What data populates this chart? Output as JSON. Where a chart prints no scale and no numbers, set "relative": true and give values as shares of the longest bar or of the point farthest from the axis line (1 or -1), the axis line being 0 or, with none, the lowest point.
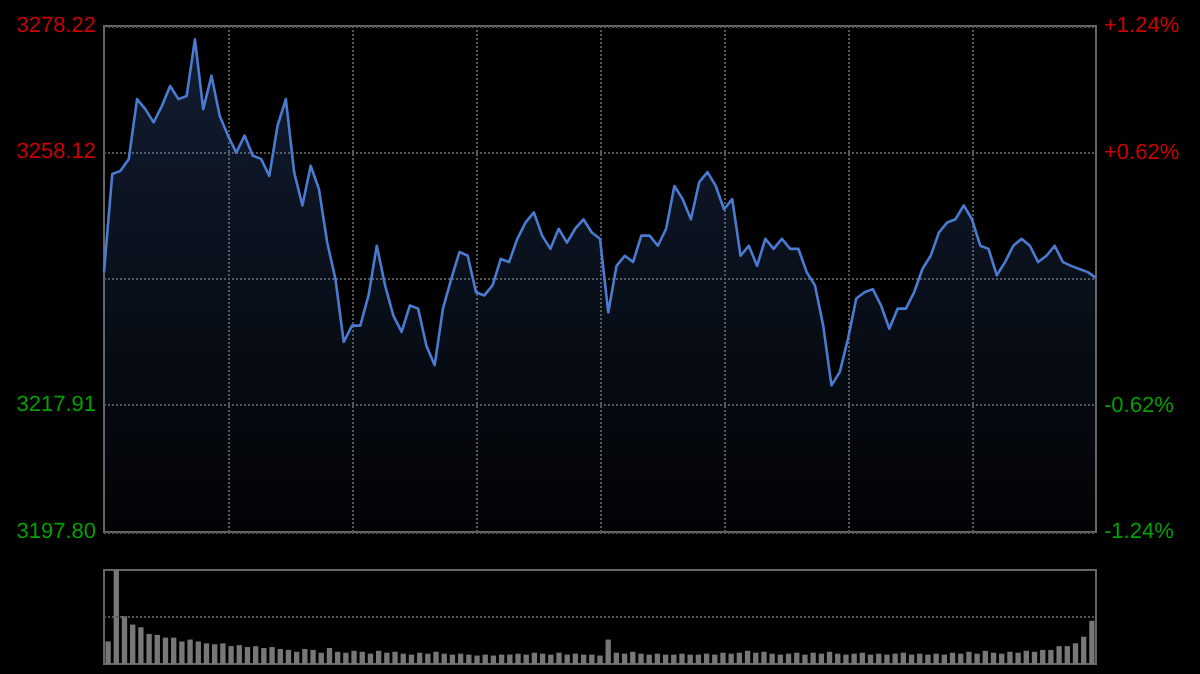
{
  "chart_data": [
    {
      "type": "area",
      "categories": [
        null,
        null,
        null,
        null,
        null,
        null,
        null,
        null,
        null,
        null,
        null,
        null,
        null,
        null,
        null,
        null,
        null,
        null,
        null,
        null,
        null,
        null,
        null,
        null,
        null,
        null,
        null,
        null,
        null,
        null,
        null,
        null,
        null,
        null,
        null,
        null,
        null,
        null,
        null,
        null,
        null,
        null,
        null,
        null,
        null,
        null,
        null,
        null,
        null,
        null,
        null,
        null,
        null,
        null,
        null,
        null,
        null,
        null,
        null,
        null,
        null,
        null,
        null,
        null,
        null,
        null,
        null,
        null,
        null,
        null,
        null,
        null,
        null,
        null,
        null,
        null,
        null,
        null,
        null,
        null,
        null,
        null,
        null,
        null,
        null,
        null,
        null,
        null,
        null,
        null,
        null,
        null,
        null,
        null,
        null,
        null,
        null,
        null,
        null,
        null,
        null,
        null,
        null,
        null,
        null,
        null,
        null,
        null,
        null,
        null,
        null,
        null,
        null,
        null,
        null,
        null,
        null,
        null,
        null,
        null,
        null
      ],
      "series": [
        {
          "color": "#4a7bd0",
          "values": [
            3239.1,
            3254.7,
            3255.2,
            3257.1,
            3266.6,
            3265.0,
            3262.9,
            3265.5,
            3268.7,
            3266.6,
            3267.1,
            3276.1,
            3265.0,
            3270.3,
            3263.9,
            3260.8,
            3258.1,
            3260.8,
            3257.6,
            3257.1,
            3254.4,
            3262.4,
            3266.6,
            3255.0,
            3249.7,
            3256.0,
            3252.3,
            3243.8,
            3238.0,
            3228.0,
            3230.6,
            3230.6,
            3235.4,
            3243.3,
            3237.0,
            3232.2,
            3229.6,
            3233.8,
            3233.3,
            3227.4,
            3224.3,
            3233.3,
            3238.0,
            3242.3,
            3241.7,
            3235.9,
            3235.4,
            3237.0,
            3241.2,
            3240.7,
            3244.4,
            3247.0,
            3248.6,
            3244.9,
            3242.8,
            3246.0,
            3243.8,
            3246.0,
            3247.5,
            3245.4,
            3244.4,
            3232.7,
            3240.1,
            3241.7,
            3240.7,
            3244.9,
            3244.9,
            3243.3,
            3246.0,
            3252.8,
            3250.7,
            3247.5,
            3253.4,
            3255.0,
            3252.8,
            3249.1,
            3250.7,
            3241.7,
            3243.3,
            3240.1,
            3244.4,
            3242.8,
            3244.4,
            3242.8,
            3242.8,
            3239.1,
            3237.0,
            3230.6,
            3221.1,
            3223.2,
            3228.5,
            3234.9,
            3235.9,
            3236.4,
            3233.8,
            3230.1,
            3233.3,
            3233.3,
            3235.9,
            3239.6,
            3241.7,
            3245.4,
            3247.0,
            3247.5,
            3249.7,
            3247.5,
            3243.3,
            3242.8,
            3238.6,
            3240.7,
            3243.3,
            3244.4,
            3243.3,
            3240.7,
            3241.7,
            3243.3,
            3240.7,
            3240.1,
            3239.6,
            3239.1,
            3238.2
          ]
        }
      ],
      "ylim": [
        3197.8,
        3278.22
      ],
      "yticks": [
        {
          "value": 3197.8,
          "label": "3197.80"
        },
        {
          "value": 3217.91,
          "label": "3217.91"
        },
        {
          "value": 3238.01,
          "label": null
        },
        {
          "value": 3258.12,
          "label": "3258.12"
        },
        {
          "value": 3278.22,
          "label": "3278.22"
        }
      ],
      "y2lim": [
        -1.24,
        1.24
      ],
      "y2ticks": [
        {
          "value": -1.24,
          "label": "-1.24%"
        },
        {
          "value": -0.62,
          "label": "-0.62%"
        },
        {
          "value": 0.62,
          "label": "+0.62%"
        },
        {
          "value": 1.24,
          "label": "+1.24%"
        }
      ],
      "grid": true
    },
    {
      "type": "bar",
      "relative": true,
      "color": "#777777",
      "ref_lines": [
        {
          "axis": "y",
          "value": 0.5,
          "color": "#555555",
          "line_style": "dotted"
        }
      ],
      "categories": [
        null,
        null,
        null,
        null,
        null,
        null,
        null,
        null,
        null,
        null,
        null,
        null,
        null,
        null,
        null,
        null,
        null,
        null,
        null,
        null,
        null,
        null,
        null,
        null,
        null,
        null,
        null,
        null,
        null,
        null,
        null,
        null,
        null,
        null,
        null,
        null,
        null,
        null,
        null,
        null,
        null,
        null,
        null,
        null,
        null,
        null,
        null,
        null,
        null,
        null,
        null,
        null,
        null,
        null,
        null,
        null,
        null,
        null,
        null,
        null,
        null,
        null,
        null,
        null,
        null,
        null,
        null,
        null,
        null,
        null,
        null,
        null,
        null,
        null,
        null,
        null,
        null,
        null,
        null,
        null,
        null,
        null,
        null,
        null,
        null,
        null,
        null,
        null,
        null,
        null,
        null,
        null,
        null,
        null,
        null,
        null,
        null,
        null,
        null,
        null,
        null,
        null,
        null,
        null,
        null,
        null,
        null,
        null,
        null,
        null,
        null,
        null,
        null,
        null,
        null,
        null,
        null,
        null,
        null,
        null,
        null
      ],
      "values": [
        0.24,
        1.0,
        0.51,
        0.42,
        0.39,
        0.32,
        0.31,
        0.28,
        0.28,
        0.24,
        0.26,
        0.24,
        0.22,
        0.21,
        0.22,
        0.19,
        0.2,
        0.18,
        0.19,
        0.17,
        0.18,
        0.16,
        0.15,
        0.13,
        0.16,
        0.15,
        0.12,
        0.17,
        0.13,
        0.12,
        0.14,
        0.13,
        0.11,
        0.14,
        0.12,
        0.13,
        0.11,
        0.1,
        0.12,
        0.11,
        0.13,
        0.11,
        0.1,
        0.11,
        0.1,
        0.09,
        0.1,
        0.09,
        0.1,
        0.1,
        0.11,
        0.1,
        0.12,
        0.11,
        0.1,
        0.12,
        0.1,
        0.11,
        0.1,
        0.1,
        0.09,
        0.26,
        0.12,
        0.11,
        0.13,
        0.11,
        0.1,
        0.11,
        0.1,
        0.1,
        0.11,
        0.1,
        0.1,
        0.11,
        0.1,
        0.12,
        0.11,
        0.12,
        0.14,
        0.12,
        0.13,
        0.11,
        0.1,
        0.11,
        0.12,
        0.1,
        0.12,
        0.11,
        0.13,
        0.11,
        0.1,
        0.11,
        0.12,
        0.1,
        0.11,
        0.1,
        0.11,
        0.12,
        0.1,
        0.11,
        0.1,
        0.11,
        0.1,
        0.12,
        0.11,
        0.13,
        0.11,
        0.14,
        0.12,
        0.11,
        0.13,
        0.12,
        0.14,
        0.13,
        0.15,
        0.15,
        0.19,
        0.19,
        0.22,
        0.29,
        0.46
      ]
    }
  ]
}
